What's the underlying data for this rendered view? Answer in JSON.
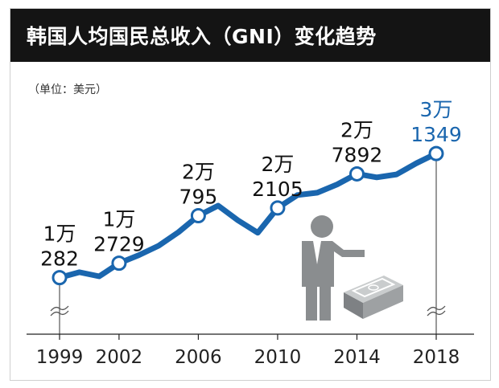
{
  "title": "韩国人均国民总收入（GNI）变化趋势",
  "unit_label": "（单位：美元）",
  "colors": {
    "line": "#1a66ae",
    "accent_label": "#1a66ae",
    "title_bg": "#141414",
    "figure": "#8a8d8f",
    "dark": "#111111"
  },
  "icons": [
    "businessman-figure-icon",
    "money-stack-icon",
    "axis-break-icon"
  ],
  "chart_data": {
    "type": "line",
    "title": "韩国人均国民总收入（GNI）变化趋势",
    "xlabel": "",
    "ylabel": "",
    "unit": "美元",
    "x_ticks": [
      "1999",
      "2002",
      "2006",
      "2010",
      "2014",
      "2018"
    ],
    "x_range": [
      1999,
      2018
    ],
    "y_range": [
      9000,
      33000
    ],
    "grid": false,
    "legend": "none",
    "axis_break": true,
    "series": [
      {
        "x": [
          1999,
          2000,
          2001,
          2002,
          2003,
          2004,
          2005,
          2006,
          2007,
          2008,
          2009,
          2010,
          2011,
          2012,
          2013,
          2014,
          2015,
          2016,
          2017,
          2018
        ],
        "y": [
          10282,
          11200,
          10500,
          12729,
          14100,
          15700,
          18000,
          20795,
          22500,
          20000,
          17900,
          22105,
          24300,
          24700,
          26100,
          27892,
          27300,
          27800,
          29700,
          31349
        ]
      }
    ],
    "labels": [
      {
        "x": 1999,
        "line1": "1万",
        "line2": "282",
        "highlight": false
      },
      {
        "x": 2002,
        "line1": "1万",
        "line2": "2729",
        "highlight": false
      },
      {
        "x": 2006,
        "line1": "2万",
        "line2": "795",
        "highlight": false
      },
      {
        "x": 2010,
        "line1": "2万",
        "line2": "2105",
        "highlight": false
      },
      {
        "x": 2014,
        "line1": "2万",
        "line2": "7892",
        "highlight": false
      },
      {
        "x": 2018,
        "line1": "3万",
        "line2": "1349",
        "highlight": true
      }
    ],
    "marked_years": [
      1999,
      2002,
      2006,
      2010,
      2014,
      2018
    ]
  }
}
